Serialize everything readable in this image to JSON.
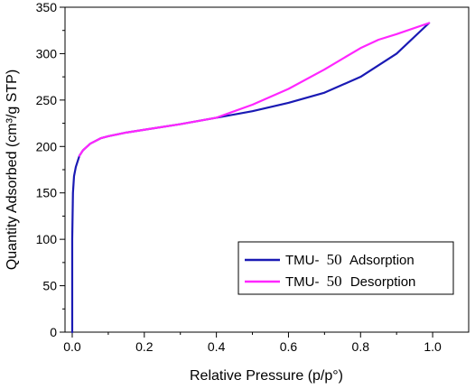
{
  "chart_data": {
    "type": "line",
    "xlabel": "Relative Pressure (p/p°)",
    "ylabel": "Quantity Adsorbed (cm³/g STP)",
    "xlim": [
      -0.02,
      1.1
    ],
    "ylim": [
      0,
      350
    ],
    "x_ticks": [
      "0.0",
      "0.2",
      "0.4",
      "0.6",
      "0.8",
      "1.0"
    ],
    "y_ticks": [
      "0",
      "50",
      "100",
      "150",
      "200",
      "250",
      "300",
      "350"
    ],
    "grid": false,
    "legend_position": "bottom-right",
    "series": [
      {
        "name": "TMU- 50 Adsorption",
        "legend_prefix": "TMU-",
        "legend_number": "50",
        "legend_suffix": "Adsorption",
        "color": "#1a1ab4",
        "x": [
          0.0,
          0.0,
          0.002,
          0.005,
          0.01,
          0.02,
          0.03,
          0.05,
          0.08,
          0.1,
          0.15,
          0.2,
          0.3,
          0.4,
          0.5,
          0.6,
          0.7,
          0.8,
          0.9,
          0.99
        ],
        "y": [
          0,
          100,
          150,
          168,
          178,
          190,
          196,
          203,
          209,
          211,
          215,
          218,
          224,
          231,
          238,
          247,
          258,
          275,
          300,
          333
        ]
      },
      {
        "name": "TMU- 50 Desorption",
        "legend_prefix": "TMU-",
        "legend_number": "50",
        "legend_suffix": "Desorption",
        "color": "#ff26ff",
        "x": [
          0.02,
          0.03,
          0.05,
          0.08,
          0.1,
          0.15,
          0.2,
          0.3,
          0.4,
          0.5,
          0.6,
          0.7,
          0.8,
          0.85,
          0.9,
          0.99
        ],
        "y": [
          190,
          196,
          203,
          209,
          211,
          215,
          218,
          224,
          231,
          245,
          262,
          283,
          306,
          315,
          321,
          333
        ]
      }
    ]
  }
}
